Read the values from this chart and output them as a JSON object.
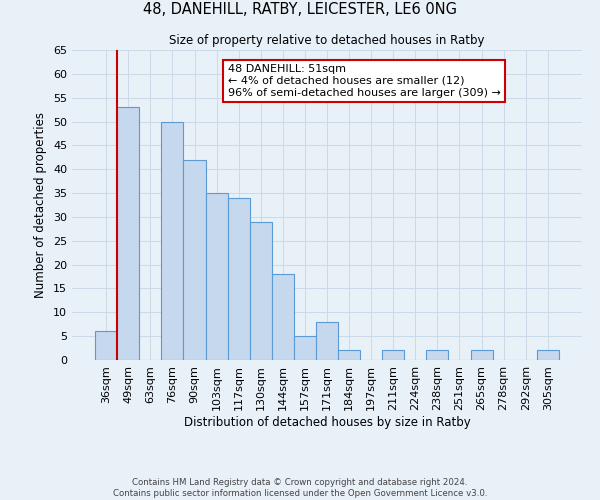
{
  "title": "48, DANEHILL, RATBY, LEICESTER, LE6 0NG",
  "subtitle": "Size of property relative to detached houses in Ratby",
  "xlabel": "Distribution of detached houses by size in Ratby",
  "ylabel": "Number of detached properties",
  "footer_line1": "Contains HM Land Registry data © Crown copyright and database right 2024.",
  "footer_line2": "Contains public sector information licensed under the Open Government Licence v3.0.",
  "bin_labels": [
    "36sqm",
    "49sqm",
    "63sqm",
    "76sqm",
    "90sqm",
    "103sqm",
    "117sqm",
    "130sqm",
    "144sqm",
    "157sqm",
    "171sqm",
    "184sqm",
    "197sqm",
    "211sqm",
    "224sqm",
    "238sqm",
    "251sqm",
    "265sqm",
    "278sqm",
    "292sqm",
    "305sqm"
  ],
  "bin_values": [
    6,
    53,
    0,
    50,
    42,
    35,
    34,
    29,
    18,
    5,
    8,
    2,
    0,
    2,
    0,
    2,
    0,
    2,
    0,
    0,
    2
  ],
  "bar_color": "#c5d8ed",
  "bar_edge_color": "#5b9bd5",
  "ylim": [
    0,
    65
  ],
  "yticks": [
    0,
    5,
    10,
    15,
    20,
    25,
    30,
    35,
    40,
    45,
    50,
    55,
    60,
    65
  ],
  "marker_line_color": "#cc0000",
  "marker_bin_index": 1,
  "annotation_text": "48 DANEHILL: 51sqm\n← 4% of detached houses are smaller (12)\n96% of semi-detached houses are larger (309) →",
  "annotation_box_facecolor": "#ffffff",
  "annotation_box_edgecolor": "#cc0000",
  "grid_color": "#ccd9e8",
  "background_color": "#e8f0f8"
}
